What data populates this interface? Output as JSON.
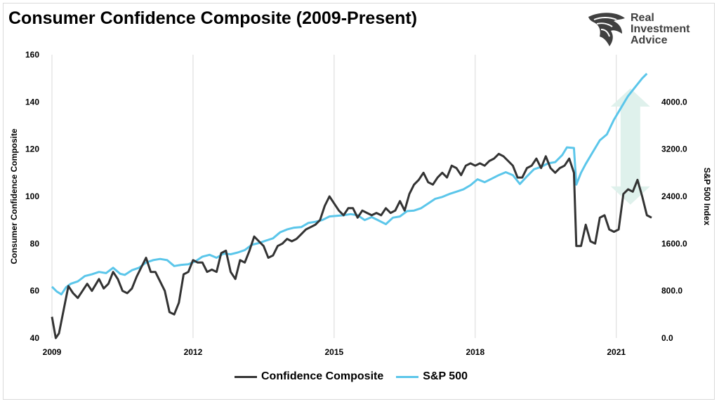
{
  "title": "Consumer Confidence Composite (2009-Present)",
  "brand": {
    "line1": "Real",
    "line2": "Investment",
    "line3": "Advice"
  },
  "colors": {
    "confidence": "#333333",
    "sp500": "#5bc6ea",
    "arrow": "#dff1ec",
    "grid": "#d9d9d9"
  },
  "chart_data": {
    "type": "line",
    "title": "Consumer Confidence Composite (2009-Present)",
    "xlabel": "",
    "ylabel": "Consumer Confidence Composite",
    "y2label": "S&P 500 Index",
    "xlim": [
      2009.0,
      2021.9
    ],
    "ylim": [
      40,
      160
    ],
    "y2lim": [
      0,
      4800
    ],
    "x_ticks": [
      "2009",
      "2012",
      "2015",
      "2018",
      "2021"
    ],
    "y_ticks": [
      "40",
      "60",
      "80",
      "100",
      "120",
      "140",
      "160"
    ],
    "y2_ticks": [
      "0.0",
      "800.0",
      "1600.0",
      "2400.0",
      "3200.0",
      "4000.0"
    ],
    "grid": "vertical",
    "legend_position": "bottom",
    "annotations": [
      "double-headed arrow between series 2020-2021"
    ],
    "series": [
      {
        "name": "Confidence Composite",
        "axis": "left",
        "x": [
          2009.0,
          2009.08,
          2009.15,
          2009.25,
          2009.35,
          2009.45,
          2009.55,
          2009.65,
          2009.75,
          2009.85,
          2010.0,
          2010.1,
          2010.2,
          2010.3,
          2010.4,
          2010.5,
          2010.6,
          2010.7,
          2010.8,
          2010.9,
          2011.0,
          2011.1,
          2011.2,
          2011.3,
          2011.4,
          2011.5,
          2011.6,
          2011.7,
          2011.8,
          2011.9,
          2012.0,
          2012.1,
          2012.2,
          2012.3,
          2012.4,
          2012.5,
          2012.6,
          2012.7,
          2012.8,
          2012.9,
          2013.0,
          2013.1,
          2013.2,
          2013.3,
          2013.4,
          2013.5,
          2013.6,
          2013.7,
          2013.8,
          2013.9,
          2014.0,
          2014.1,
          2014.2,
          2014.3,
          2014.4,
          2014.5,
          2014.6,
          2014.7,
          2014.8,
          2014.9,
          2015.0,
          2015.1,
          2015.2,
          2015.3,
          2015.4,
          2015.5,
          2015.6,
          2015.7,
          2015.8,
          2015.9,
          2016.0,
          2016.1,
          2016.2,
          2016.3,
          2016.4,
          2016.5,
          2016.6,
          2016.7,
          2016.8,
          2016.9,
          2017.0,
          2017.1,
          2017.2,
          2017.3,
          2017.4,
          2017.5,
          2017.6,
          2017.7,
          2017.8,
          2017.9,
          2018.0,
          2018.1,
          2018.2,
          2018.3,
          2018.4,
          2018.5,
          2018.6,
          2018.7,
          2018.8,
          2018.9,
          2019.0,
          2019.1,
          2019.2,
          2019.3,
          2019.4,
          2019.5,
          2019.6,
          2019.7,
          2019.8,
          2019.9,
          2020.0,
          2020.1,
          2020.15,
          2020.25,
          2020.35,
          2020.45,
          2020.55,
          2020.65,
          2020.75,
          2020.85,
          2020.95,
          2021.05,
          2021.15,
          2021.25,
          2021.35,
          2021.45,
          2021.55,
          2021.65,
          2021.75
        ],
        "values": [
          49,
          40,
          42,
          52,
          62,
          59,
          57,
          60,
          63,
          60,
          65,
          61,
          63,
          68,
          65,
          60,
          59,
          61,
          66,
          70,
          74,
          68,
          68,
          64,
          60,
          51,
          50,
          55,
          67,
          68,
          73,
          72,
          72,
          68,
          69,
          68,
          76,
          77,
          68,
          65,
          73,
          72,
          77,
          83,
          81,
          79,
          74,
          75,
          79,
          80,
          82,
          81,
          82,
          84,
          86,
          87,
          88,
          90,
          96,
          100,
          97,
          94,
          92,
          95,
          95,
          91,
          94,
          93,
          92,
          93,
          92,
          95,
          93,
          94,
          98,
          94,
          101,
          105,
          107,
          110,
          106,
          105,
          108,
          110,
          108,
          113,
          112,
          109,
          113,
          114,
          113,
          114,
          113,
          115,
          116,
          118,
          117,
          115,
          113,
          108,
          108,
          112,
          113,
          116,
          112,
          117,
          112,
          110,
          112,
          113,
          116,
          110,
          79,
          79,
          88,
          81,
          80,
          91,
          92,
          86,
          85,
          86,
          101,
          103,
          102,
          107,
          100,
          92,
          91
        ]
      },
      {
        "name": "S&P 500",
        "axis": "right",
        "x": [
          2009.0,
          2009.1,
          2009.2,
          2009.3,
          2009.4,
          2009.55,
          2009.7,
          2009.85,
          2010.0,
          2010.15,
          2010.3,
          2010.45,
          2010.55,
          2010.7,
          2010.85,
          2011.0,
          2011.15,
          2011.3,
          2011.45,
          2011.6,
          2011.75,
          2011.9,
          2012.05,
          2012.2,
          2012.35,
          2012.5,
          2012.65,
          2012.8,
          2012.95,
          2013.1,
          2013.25,
          2013.4,
          2013.55,
          2013.7,
          2013.85,
          2014.0,
          2014.15,
          2014.3,
          2014.45,
          2014.6,
          2014.75,
          2014.9,
          2015.05,
          2015.2,
          2015.35,
          2015.5,
          2015.65,
          2015.8,
          2015.95,
          2016.1,
          2016.25,
          2016.4,
          2016.55,
          2016.7,
          2016.85,
          2017.0,
          2017.15,
          2017.3,
          2017.45,
          2017.6,
          2017.75,
          2017.9,
          2018.05,
          2018.2,
          2018.35,
          2018.5,
          2018.65,
          2018.8,
          2018.95,
          2019.1,
          2019.25,
          2019.4,
          2019.55,
          2019.7,
          2019.85,
          2019.95,
          2020.1,
          2020.15,
          2020.25,
          2020.35,
          2020.5,
          2020.65,
          2020.8,
          2020.95,
          2021.1,
          2021.25,
          2021.4,
          2021.55,
          2021.65
        ],
        "values": [
          870,
          790,
          740,
          860,
          920,
          960,
          1050,
          1080,
          1120,
          1100,
          1190,
          1090,
          1070,
          1150,
          1190,
          1280,
          1320,
          1340,
          1320,
          1220,
          1240,
          1250,
          1300,
          1380,
          1410,
          1360,
          1430,
          1420,
          1450,
          1490,
          1580,
          1610,
          1650,
          1690,
          1790,
          1840,
          1870,
          1880,
          1950,
          1970,
          2000,
          2060,
          2070,
          2080,
          2100,
          2080,
          2000,
          2050,
          1990,
          1930,
          2040,
          2060,
          2150,
          2160,
          2200,
          2280,
          2360,
          2390,
          2440,
          2480,
          2520,
          2590,
          2690,
          2640,
          2700,
          2760,
          2810,
          2760,
          2610,
          2740,
          2860,
          2900,
          2960,
          2980,
          3100,
          3230,
          3220,
          2600,
          2800,
          2950,
          3150,
          3350,
          3450,
          3700,
          3900,
          4100,
          4250,
          4400,
          4480
        ]
      }
    ]
  }
}
